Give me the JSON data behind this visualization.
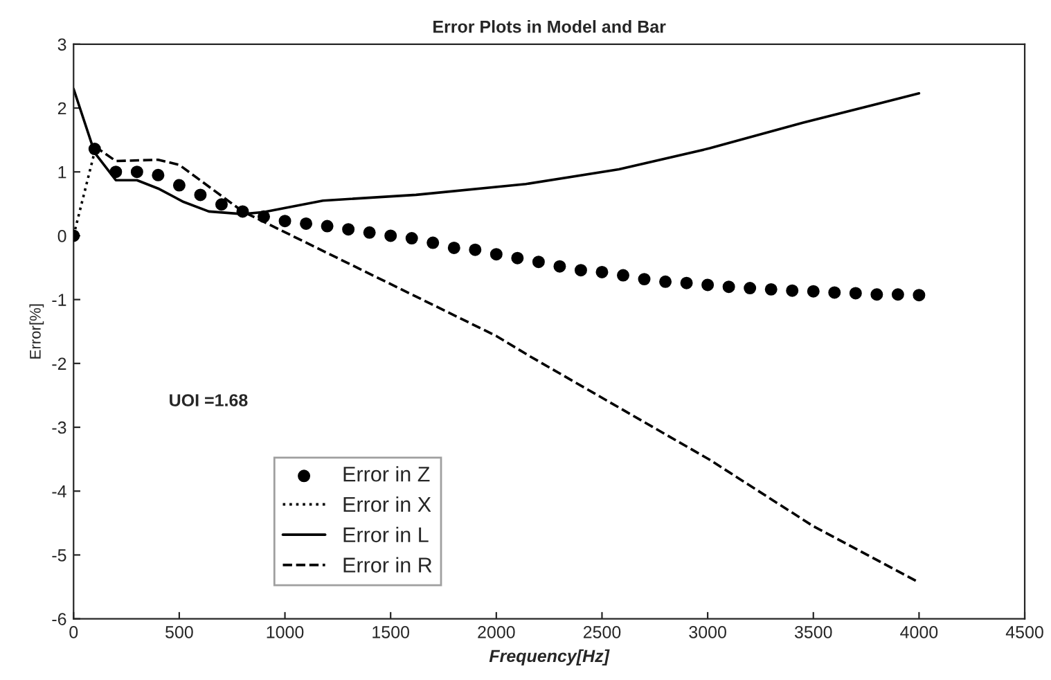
{
  "chart_data": {
    "type": "line",
    "title": "Error Plots in Model and Bar",
    "xlabel": "Frequency[Hz]",
    "ylabel": "Error[%]",
    "annotations": [
      "UOI =1.68"
    ],
    "xlim": [
      0,
      4500
    ],
    "xticks": [
      0,
      500,
      1000,
      1500,
      2000,
      2500,
      3000,
      3500,
      4000,
      4500
    ],
    "ylim": [
      -6,
      3
    ],
    "yticks": [
      -6,
      -5,
      -4,
      -3,
      -2,
      -1,
      0,
      1,
      2,
      3
    ],
    "grid": false,
    "legend": "bottom left",
    "series": [
      {
        "name": "Error in Z",
        "type": "scatter",
        "marker": "circle",
        "color": "#000000",
        "x": [
          0,
          100,
          200,
          300,
          400,
          500,
          600,
          700,
          800,
          900,
          1000,
          1100,
          1200,
          1300,
          1400,
          1500,
          1600,
          1700,
          1800,
          1900,
          2000,
          2100,
          2200,
          2300,
          2400,
          2500,
          2600,
          2700,
          2800,
          2900,
          3000,
          3100,
          3200,
          3300,
          3400,
          3500,
          3600,
          3700,
          3800,
          3900,
          4000
        ],
        "values": [
          0,
          1.36,
          1.0,
          1.0,
          0.95,
          0.79,
          0.64,
          0.49,
          0.38,
          0.3,
          0.23,
          0.19,
          0.15,
          0.1,
          0.05,
          0.0,
          -0.04,
          -0.11,
          -0.19,
          -0.22,
          -0.29,
          -0.35,
          -0.41,
          -0.48,
          -0.54,
          -0.57,
          -0.62,
          -0.68,
          -0.72,
          -0.74,
          -0.77,
          -0.8,
          -0.82,
          -0.84,
          -0.86,
          -0.87,
          -0.89,
          -0.9,
          -0.92,
          -0.92,
          -0.93
        ]
      },
      {
        "name": "Error in X",
        "line_style": "dotted",
        "color": "#000000",
        "x": [
          0,
          100
        ],
        "values": [
          0,
          1.32
        ]
      },
      {
        "name": "Error in L",
        "line_style": "solid",
        "color": "#000000",
        "x": [
          0,
          100,
          200,
          300,
          400,
          520,
          640,
          800,
          900,
          1180,
          1620,
          2140,
          2580,
          3010,
          3450,
          4000
        ],
        "values": [
          2.3,
          1.3,
          0.87,
          0.87,
          0.74,
          0.53,
          0.38,
          0.34,
          0.37,
          0.55,
          0.64,
          0.81,
          1.04,
          1.37,
          1.77,
          2.23
        ]
      },
      {
        "name": "Error in R",
        "line_style": "dashed",
        "color": "#000000",
        "x": [
          100,
          200,
          400,
          500,
          640,
          800,
          2000,
          2160,
          3010,
          3500,
          4000
        ],
        "values": [
          1.4,
          1.17,
          1.19,
          1.11,
          0.77,
          0.38,
          -1.57,
          -1.89,
          -3.51,
          -4.55,
          -5.43
        ]
      }
    ]
  }
}
